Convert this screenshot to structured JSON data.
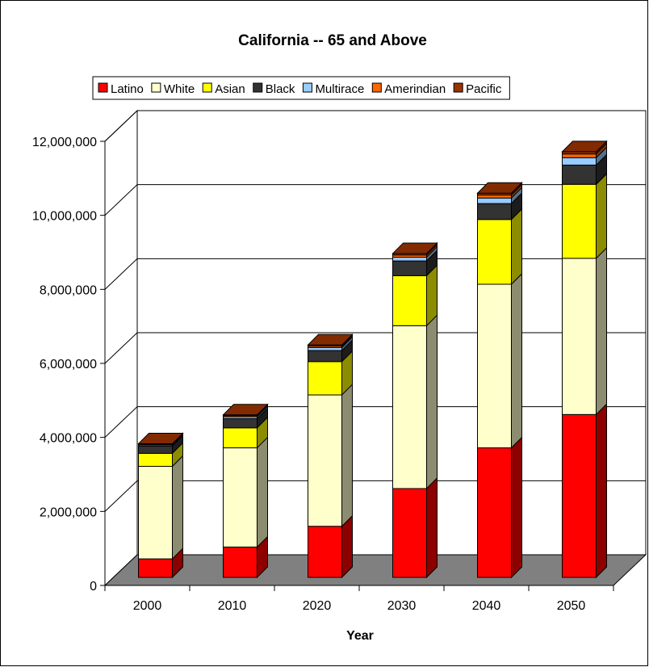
{
  "chart_data": {
    "type": "bar",
    "stacked": true,
    "three_d": true,
    "title": "California -- 65 and Above",
    "xlabel": "Year",
    "ylabel": "",
    "ylim": [
      0,
      12000000
    ],
    "y_ticks": [
      0,
      2000000,
      4000000,
      6000000,
      8000000,
      10000000,
      12000000
    ],
    "y_tick_labels": [
      "0",
      "2,000,000",
      "4,000,000",
      "6,000,000",
      "8,000,000",
      "10,000,000",
      "12,000,000"
    ],
    "grid": true,
    "legend_position": "top",
    "categories": [
      "2000",
      "2010",
      "2020",
      "2030",
      "2040",
      "2050"
    ],
    "series": [
      {
        "name": "Latino",
        "color": "#ff0000",
        "values": [
          500000,
          820000,
          1380000,
          2400000,
          3500000,
          4400000
        ]
      },
      {
        "name": "White",
        "color": "#ffffcc",
        "values": [
          2500000,
          2680000,
          3550000,
          4400000,
          4420000,
          4220000
        ]
      },
      {
        "name": "Asian",
        "color": "#ffff00",
        "values": [
          350000,
          540000,
          900000,
          1350000,
          1750000,
          2000000
        ]
      },
      {
        "name": "Black",
        "color": "#333333",
        "values": [
          200000,
          250000,
          300000,
          400000,
          430000,
          520000
        ]
      },
      {
        "name": "Multirace",
        "color": "#99ccff",
        "values": [
          30000,
          50000,
          80000,
          100000,
          150000,
          200000
        ]
      },
      {
        "name": "Amerindian",
        "color": "#ff6600",
        "values": [
          20000,
          30000,
          40000,
          60000,
          80000,
          100000
        ]
      },
      {
        "name": "Pacific",
        "color": "#993300",
        "values": [
          10000,
          20000,
          30000,
          40000,
          50000,
          60000
        ]
      }
    ]
  }
}
